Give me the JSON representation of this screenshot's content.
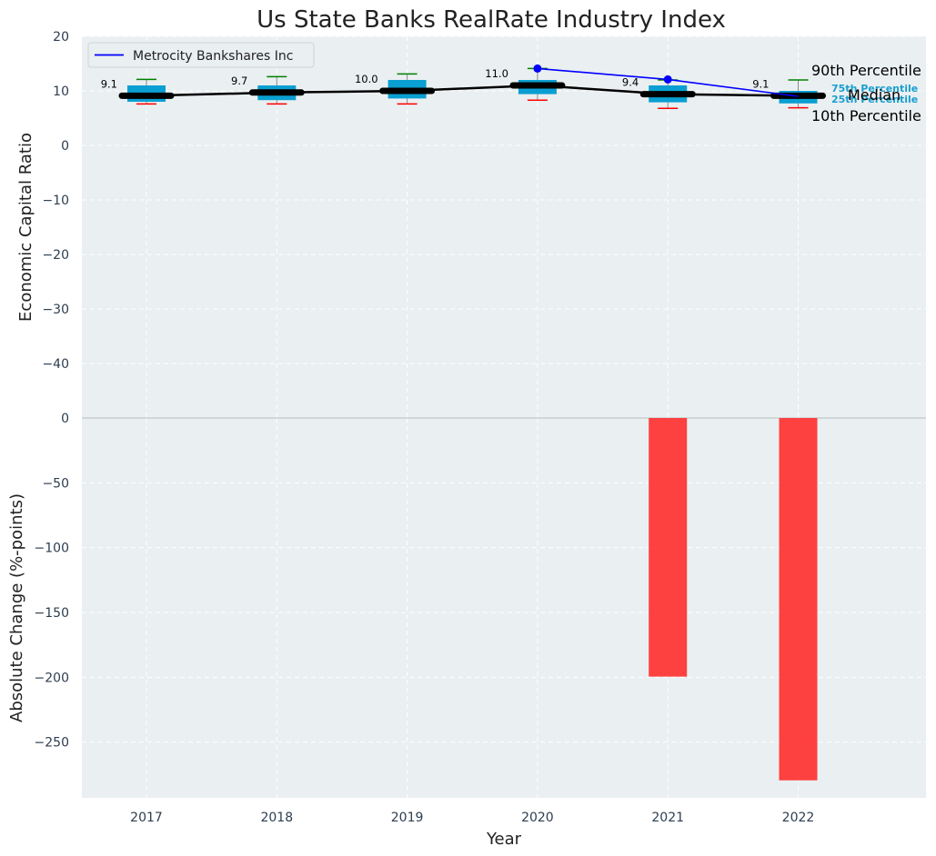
{
  "chart_data": [
    {
      "type": "box",
      "title": "Us State Banks RealRate Industry Index",
      "ylabel": "Economic Capital Ratio",
      "ylim": [
        -50,
        20
      ],
      "yticks": [
        20,
        10,
        0,
        -10,
        -20,
        -30,
        -40
      ],
      "categories": [
        "2017",
        "2018",
        "2019",
        "2020",
        "2021",
        "2022"
      ],
      "percentiles": {
        "p10": [
          7.6,
          7.6,
          7.6,
          8.3,
          6.8,
          6.9
        ],
        "p25": [
          8.0,
          8.3,
          8.6,
          9.4,
          7.9,
          7.7
        ],
        "median": [
          9.1,
          9.7,
          10.0,
          11.0,
          9.4,
          9.1
        ],
        "p75": [
          11.0,
          11.0,
          12.0,
          12.0,
          11.0,
          10.0
        ],
        "p90": [
          12.1,
          12.6,
          13.1,
          14.1,
          12.0,
          12.0
        ]
      },
      "median_labels": [
        "9.1",
        "9.7",
        "10.0",
        "11.0",
        "9.4",
        "9.1"
      ],
      "series": [
        {
          "name": "Metrocity Bankshares Inc",
          "x": [
            "2020",
            "2021",
            "2022"
          ],
          "values": [
            14.1,
            12.1,
            9.0
          ],
          "color": "#0000ff"
        }
      ],
      "annotations": {
        "p90": "90th Percentile",
        "p75": "75th Percentile",
        "median": "Median",
        "p25": "25th Percentile",
        "p10": "10th Percentile"
      },
      "legend_position": "top-left",
      "grid": true
    },
    {
      "type": "bar",
      "ylabel": "Absolute Change (%-points)",
      "xlabel": "Year",
      "ylim": [
        -293,
        0
      ],
      "yticks": [
        0,
        -50,
        -100,
        -150,
        -200,
        -250
      ],
      "categories": [
        "2017",
        "2018",
        "2019",
        "2020",
        "2021",
        "2022"
      ],
      "values": [
        null,
        null,
        null,
        null,
        -199.5,
        -279.5
      ],
      "color": "#ff2d2d",
      "grid": true
    }
  ],
  "colors": {
    "panel_bg": "#eaeff1",
    "box": "#0a9fd2",
    "median_line": "#000000",
    "p90_whisker": "#008000",
    "p10_whisker": "#ff0000"
  }
}
